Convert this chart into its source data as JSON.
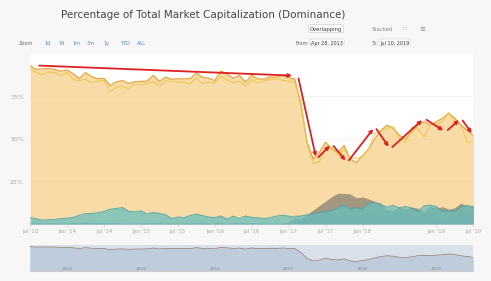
{
  "title": "Percentage of Total Market Capitalization (Dominance)",
  "title_fontsize": 7.5,
  "background_color": "#f7f7f7",
  "plot_bg_color": "#ffffff",
  "orange_fill_color": "#f5c878",
  "orange_fill_alpha": 0.65,
  "orange_line_color": "#e8a030",
  "yellow_line_color": "#e8c840",
  "teal_fill_color": "#68c0c0",
  "teal_fill_alpha": 0.75,
  "teal_line_color": "#50a8a8",
  "dark_gray_fill_color": "#606060",
  "dark_gray_fill_alpha": 0.55,
  "light_gray_fill_color": "#b8b0a8",
  "light_gray_fill_alpha": 0.45,
  "red_line_color": "#dd2020",
  "mini_chart_bg": "#d8e0ea",
  "mini_chart_fill_color": "#b8c8d8",
  "mini_chart_line_color": "#907870",
  "zoom_labels": [
    "Zoom",
    "1d",
    "7d",
    "1m",
    "3m",
    "1y",
    "YTD",
    "ALL"
  ],
  "from_text": "Apr 28, 2013",
  "to_text": "Jul 10, 2019",
  "x_tick_positions": [
    0,
    6,
    12,
    18,
    24,
    30,
    36,
    42,
    48,
    54,
    66,
    72
  ],
  "x_tick_labels": [
    "Jul '13",
    "Jan '14",
    "Jul '14",
    "Jan '15",
    "Jul '15",
    "Jan '16",
    "Jul '16",
    "Jan '17",
    "Jul '17",
    "Jan '18",
    "Jan '19",
    "Jul '19"
  ],
  "mini_year_labels": [
    "2014",
    "2015",
    "2016",
    "2017",
    "2018",
    "2019"
  ],
  "mini_year_positions": [
    6,
    18,
    30,
    42,
    54,
    66
  ]
}
